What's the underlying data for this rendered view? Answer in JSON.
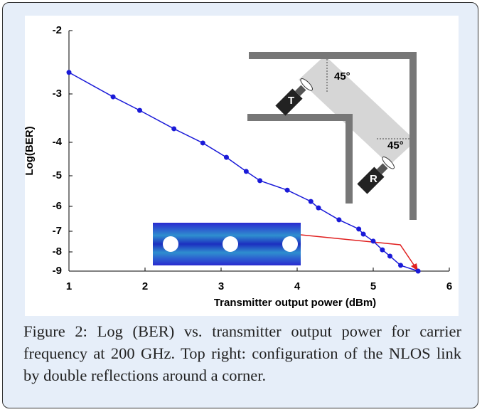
{
  "chart_data": {
    "type": "line",
    "x_label": "Transmitter output power (dBm)",
    "y_label": "Log(BER)",
    "x": [
      1.0,
      1.58,
      1.93,
      2.38,
      2.76,
      3.07,
      3.33,
      3.51,
      3.87,
      4.18,
      4.28,
      4.55,
      4.81,
      4.87,
      5.0,
      5.12,
      5.22,
      5.36,
      5.59
    ],
    "series": [
      {
        "color": "#1a1ad8",
        "values": [
          -2.66,
          -3.06,
          -3.34,
          -3.72,
          -4.02,
          -4.45,
          -4.87,
          -5.16,
          -5.47,
          -5.84,
          -6.06,
          -6.54,
          -6.91,
          -7.14,
          -7.48,
          -7.9,
          -8.22,
          -8.7,
          -9.0
        ]
      }
    ],
    "xlim": [
      1,
      6
    ],
    "xticks": [
      1,
      2,
      3,
      4,
      5,
      6
    ],
    "ylim": [
      -9,
      -2
    ],
    "yticks": [
      -2,
      -3,
      -4,
      -5,
      -6,
      -7,
      -8,
      -9
    ],
    "annotations": [
      "45°",
      "45°",
      "T",
      "R"
    ]
  },
  "caption": "Figure 2: Log (BER) vs. transmitter output power for carrier frequency at 200 GHz. Top right: configuration of the NLOS link by double reflections around a corner."
}
